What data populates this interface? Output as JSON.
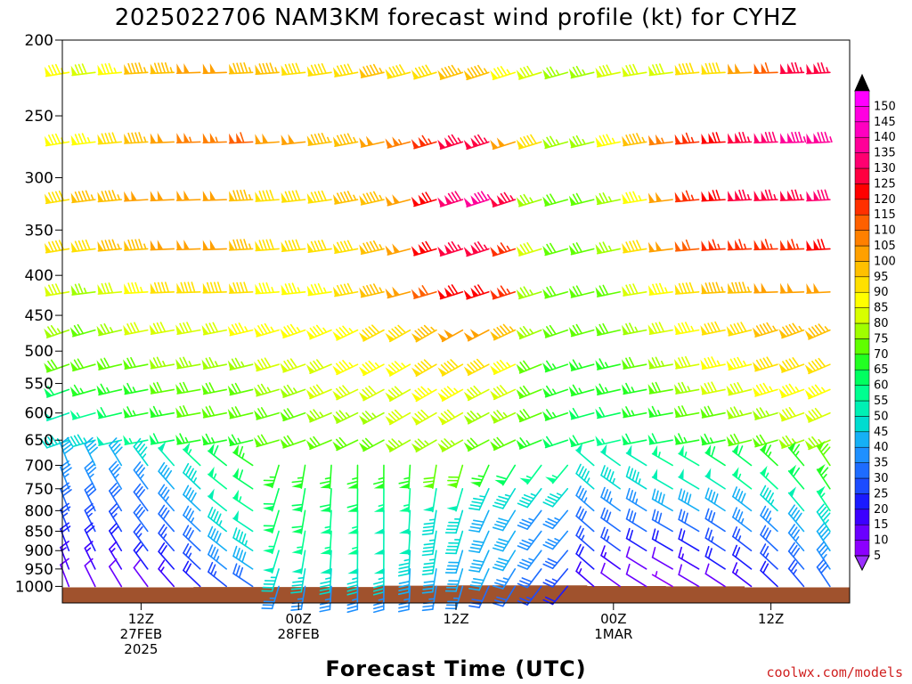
{
  "chart_data": {
    "type": "wind-barb time-pressure cross section",
    "title": "2025022706 NAM3KM forecast wind profile (kt) for CYHZ",
    "xlabel": "Forecast Time (UTC)",
    "ylabel": "",
    "y_scale": "log",
    "y_inverted": true,
    "ylim": [
      200,
      1050
    ],
    "y_ticks": [
      "200",
      "250",
      "300",
      "350",
      "400",
      "450",
      "500",
      "550",
      "600",
      "650",
      "700",
      "750",
      "800",
      "850",
      "900",
      "950",
      "1000"
    ],
    "x_ticks": [
      {
        "hour": 6,
        "line1": "12Z",
        "line2": "27FEB",
        "line3": "2025"
      },
      {
        "hour": 18,
        "line1": "00Z",
        "line2": "28FEB",
        "line3": ""
      },
      {
        "hour": 30,
        "line1": "12Z",
        "line2": "",
        "line3": ""
      },
      {
        "hour": 42,
        "line1": "00Z",
        "line2": "1MAR",
        "line3": ""
      },
      {
        "hour": 54,
        "line1": "12Z",
        "line2": "",
        "line3": ""
      }
    ],
    "xlim_hours": [
      0,
      60
    ],
    "colorbar": {
      "label_unit": "kt",
      "levels": [
        5,
        10,
        15,
        20,
        25,
        30,
        35,
        40,
        45,
        50,
        55,
        60,
        65,
        70,
        75,
        80,
        85,
        90,
        95,
        100,
        105,
        110,
        115,
        120,
        125,
        130,
        135,
        140,
        145,
        150
      ],
      "colors": [
        "#8c00ff",
        "#6a00ff",
        "#3c00ff",
        "#1a1aff",
        "#1c4cff",
        "#1e6cff",
        "#1e90ff",
        "#16b0f5",
        "#00dcd0",
        "#00f0b4",
        "#00ff90",
        "#00ff60",
        "#22ff22",
        "#60ff00",
        "#a0ff00",
        "#d8ff00",
        "#ffff00",
        "#ffe000",
        "#ffc000",
        "#ffa000",
        "#ff8000",
        "#ff6000",
        "#ff3000",
        "#ff0000",
        "#ff0040",
        "#ff0070",
        "#ff0098",
        "#ff00c0",
        "#ff00e0",
        "#ff00ff"
      ]
    },
    "terrain": {
      "color": "#a0522d",
      "description": "surface pressure below which data is masked",
      "surface_pressure_hpa": [
        {
          "hour": 0,
          "p": 1003
        },
        {
          "hour": 10,
          "p": 1002
        },
        {
          "hour": 18,
          "p": 1002
        },
        {
          "hour": 24,
          "p": 998
        },
        {
          "hour": 30,
          "p": 997
        },
        {
          "hour": 36,
          "p": 997
        },
        {
          "hour": 40,
          "p": 999
        },
        {
          "hour": 46,
          "p": 1000
        },
        {
          "hour": 52,
          "p": 1003
        },
        {
          "hour": 60,
          "p": 1003
        }
      ]
    },
    "barb_levels_hpa": [
      220,
      270,
      320,
      370,
      420,
      470,
      520,
      560,
      600,
      650,
      700,
      750,
      800,
      850,
      900,
      950,
      1000
    ],
    "barb_hours_step": 2,
    "wind_series": [
      {
        "p": 220,
        "speed_kt": [
          85,
          80,
          85,
          95,
          95,
          100,
          100,
          95,
          95,
          90,
          90,
          90,
          95,
          90,
          90,
          95,
          95,
          85,
          80,
          75,
          75,
          80,
          80,
          80,
          90,
          90,
          100,
          110,
          125,
          125
        ]
      },
      {
        "p": 270,
        "speed_kt": [
          85,
          85,
          90,
          95,
          100,
          105,
          105,
          110,
          100,
          100,
          95,
          95,
          100,
          105,
          115,
          125,
          125,
          100,
          90,
          75,
          75,
          85,
          95,
          105,
          115,
          120,
          125,
          130,
          135,
          135
        ]
      },
      {
        "p": 320,
        "speed_kt": [
          90,
          95,
          95,
          100,
          100,
          100,
          100,
          95,
          90,
          90,
          90,
          95,
          95,
          100,
          120,
          130,
          135,
          125,
          75,
          70,
          70,
          75,
          85,
          100,
          115,
          120,
          125,
          125,
          125,
          130
        ]
      },
      {
        "p": 370,
        "speed_kt": [
          90,
          90,
          95,
          95,
          100,
          100,
          100,
          95,
          90,
          90,
          90,
          90,
          95,
          100,
          120,
          125,
          125,
          115,
          80,
          70,
          70,
          75,
          90,
          100,
          110,
          115,
          115,
          115,
          115,
          120
        ]
      },
      {
        "p": 420,
        "speed_kt": [
          80,
          75,
          80,
          85,
          90,
          90,
          90,
          90,
          85,
          85,
          85,
          90,
          95,
          100,
          110,
          120,
          120,
          115,
          75,
          70,
          70,
          70,
          80,
          85,
          90,
          95,
          95,
          100,
          100,
          100
        ]
      },
      {
        "p": 470,
        "speed_kt": [
          75,
          70,
          75,
          80,
          80,
          80,
          80,
          85,
          85,
          85,
          85,
          85,
          90,
          90,
          95,
          100,
          100,
          95,
          75,
          70,
          70,
          70,
          75,
          80,
          85,
          90,
          90,
          95,
          95,
          95
        ]
      },
      {
        "p": 520,
        "speed_kt": [
          70,
          70,
          70,
          70,
          75,
          75,
          75,
          75,
          80,
          80,
          80,
          85,
          85,
          85,
          90,
          90,
          90,
          85,
          70,
          65,
          65,
          65,
          70,
          75,
          80,
          85,
          85,
          90,
          90,
          90
        ]
      },
      {
        "p": 560,
        "speed_kt": [
          60,
          65,
          65,
          65,
          70,
          70,
          70,
          70,
          75,
          75,
          80,
          80,
          80,
          80,
          85,
          85,
          80,
          80,
          70,
          65,
          65,
          65,
          65,
          70,
          75,
          80,
          80,
          85,
          85,
          85
        ]
      },
      {
        "p": 600,
        "speed_kt": [
          50,
          55,
          60,
          65,
          65,
          70,
          70,
          70,
          70,
          70,
          75,
          75,
          75,
          80,
          80,
          80,
          75,
          75,
          70,
          65,
          60,
          60,
          65,
          65,
          70,
          70,
          75,
          75,
          80,
          80
        ]
      },
      {
        "p": 650,
        "speed_kt": [
          45,
          45,
          50,
          55,
          60,
          65,
          65,
          65,
          70,
          70,
          70,
          70,
          70,
          75,
          75,
          75,
          70,
          70,
          65,
          60,
          60,
          55,
          60,
          60,
          65,
          65,
          70,
          70,
          75,
          75
        ]
      },
      {
        "p": 700,
        "speed_kt": [
          40,
          40,
          40,
          45,
          50,
          55,
          60,
          65,
          65,
          65,
          65,
          65,
          65,
          65,
          70,
          70,
          65,
          60,
          55,
          55,
          50,
          50,
          50,
          55,
          55,
          60,
          60,
          65,
          65,
          70
        ]
      },
      {
        "p": 750,
        "speed_kt": [
          35,
          35,
          35,
          35,
          40,
          45,
          55,
          60,
          60,
          60,
          60,
          60,
          55,
          55,
          50,
          50,
          45,
          45,
          45,
          45,
          45,
          45,
          45,
          50,
          50,
          50,
          55,
          55,
          60,
          65
        ]
      },
      {
        "p": 800,
        "speed_kt": [
          30,
          30,
          30,
          30,
          35,
          40,
          50,
          55,
          60,
          60,
          55,
          55,
          50,
          50,
          45,
          45,
          40,
          40,
          35,
          35,
          35,
          35,
          35,
          40,
          40,
          40,
          40,
          45,
          50,
          55
        ]
      },
      {
        "p": 850,
        "speed_kt": [
          25,
          25,
          25,
          30,
          30,
          35,
          45,
          50,
          55,
          55,
          55,
          55,
          50,
          50,
          45,
          45,
          40,
          40,
          35,
          35,
          30,
          30,
          30,
          30,
          30,
          30,
          35,
          35,
          40,
          45
        ]
      },
      {
        "p": 900,
        "speed_kt": [
          20,
          20,
          20,
          25,
          25,
          30,
          40,
          45,
          50,
          50,
          50,
          50,
          50,
          45,
          45,
          40,
          40,
          40,
          35,
          30,
          25,
          25,
          20,
          20,
          20,
          25,
          25,
          30,
          35,
          40
        ]
      },
      {
        "p": 950,
        "speed_kt": [
          15,
          15,
          15,
          20,
          20,
          25,
          35,
          40,
          45,
          45,
          45,
          45,
          45,
          40,
          40,
          40,
          40,
          35,
          30,
          25,
          20,
          15,
          10,
          10,
          15,
          20,
          20,
          25,
          30,
          35
        ]
      },
      {
        "p": 1000,
        "speed_kt": [
          10,
          10,
          10,
          10,
          15,
          20,
          25,
          30,
          35,
          35,
          35,
          35,
          35,
          35,
          35,
          35,
          30,
          30,
          25,
          20,
          15,
          10,
          10,
          5,
          10,
          10,
          15,
          20,
          25,
          30
        ]
      }
    ],
    "wind_direction_deg": {
      "upper": 260,
      "mid": 250,
      "low_early": 340,
      "low_mid": 200,
      "low_late": 320
    }
  },
  "credit": "coolwx.com/models"
}
